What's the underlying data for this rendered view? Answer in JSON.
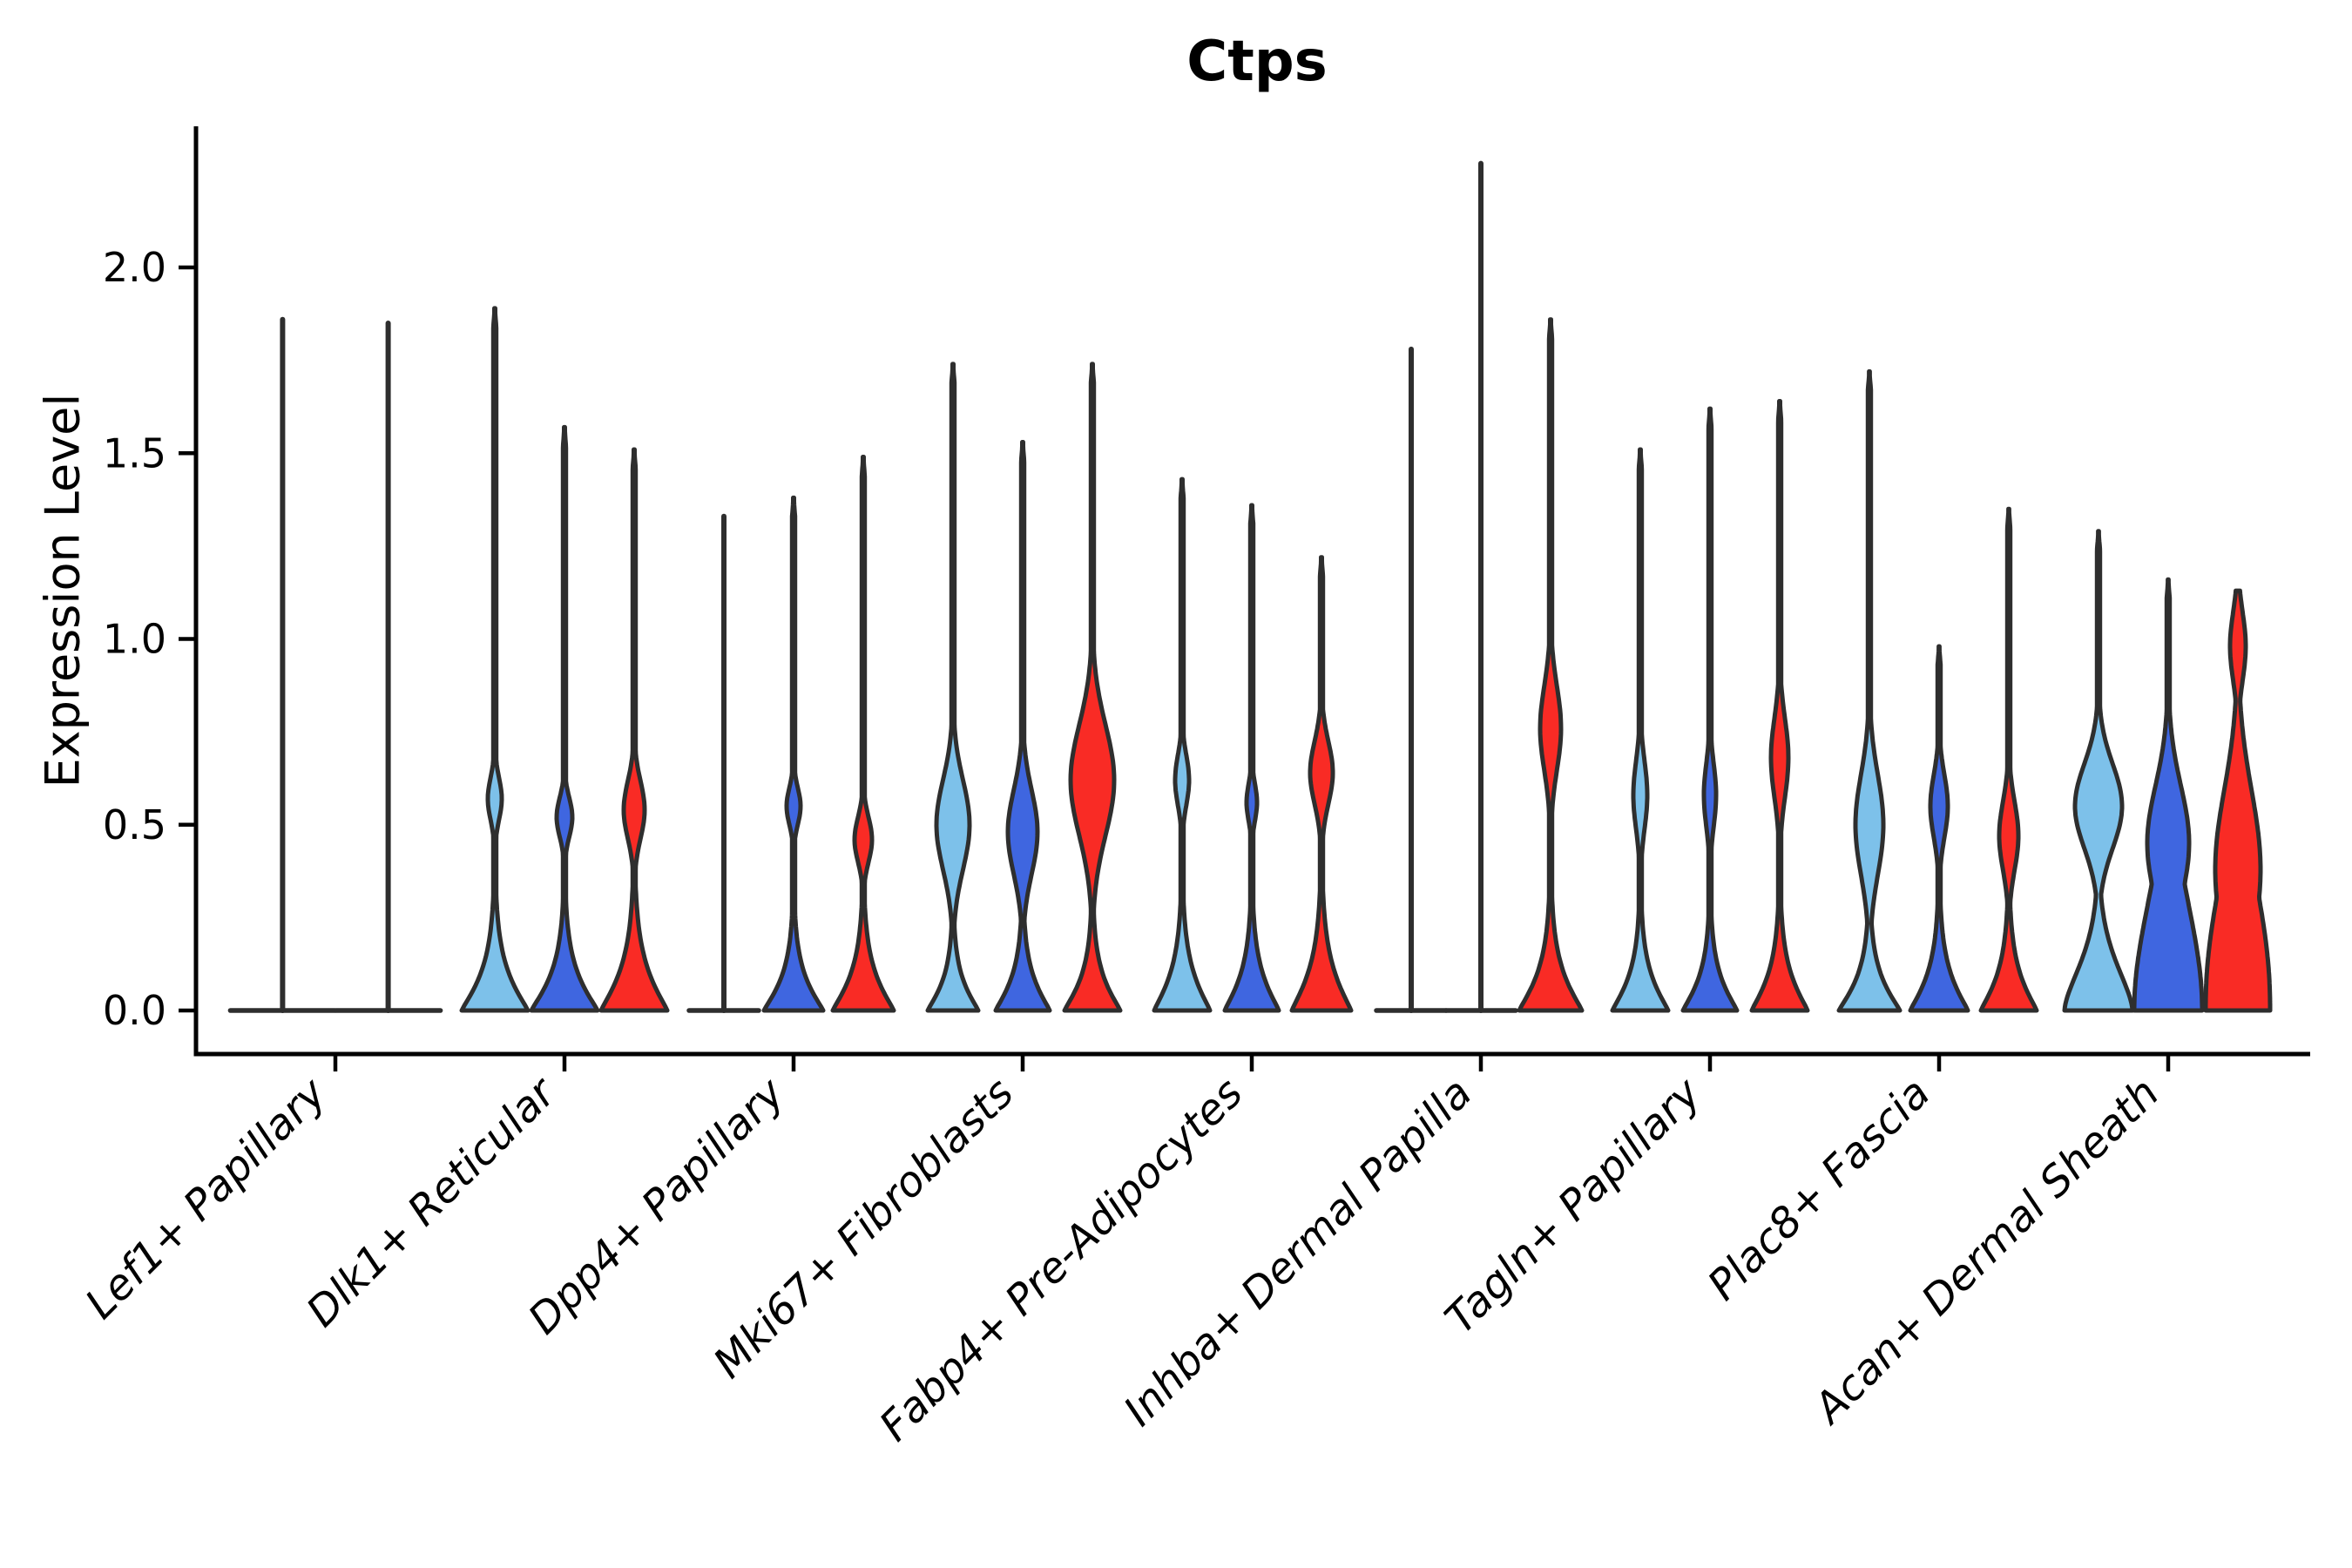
{
  "title": "Ctps",
  "ylabel": "Expression Level",
  "colors": {
    "condition1": "#7DC1EA",
    "condition2": "#3F66E0",
    "condition3": "#F92B25",
    "edge": "#2E2E2E",
    "axis": "#000000"
  },
  "chart_data": {
    "type": "violin",
    "title": "Ctps",
    "xlabel": "",
    "ylabel": "Expression Level",
    "ylim": [
      -0.12,
      2.38
    ],
    "yticks": [
      {
        "value": 0.0,
        "label": "0.0"
      },
      {
        "value": 0.5,
        "label": "0.5"
      },
      {
        "value": 1.0,
        "label": "1.0"
      },
      {
        "value": 1.5,
        "label": "1.5"
      },
      {
        "value": 2.0,
        "label": "2.0"
      }
    ],
    "grid": false,
    "legend_position": "none",
    "conditions": [
      {
        "id": "condition-1",
        "color": "#7DC1EA"
      },
      {
        "id": "condition-2",
        "color": "#3F66E0"
      },
      {
        "id": "condition-3",
        "color": "#F92B25"
      }
    ],
    "categories": [
      "Lef1+ Papillary",
      "Dlk1+ Reticular",
      "Dpp4+ Papillary",
      "Mki67+ Fibroblasts",
      "Fabp4+ Pre-Adipocytes",
      "Inhba+ Dermal Papilla",
      "Tagln+ Papillary",
      "Plac8+ Fascia",
      "Acan+ Dermal Sheath"
    ],
    "groups": [
      {
        "label": "Lef1+ Papillary",
        "violins": [
          {
            "condition": 1,
            "max": 1.86,
            "flat": true
          },
          {
            "condition": 2,
            "max": 1.85,
            "flat": true
          }
        ]
      },
      {
        "label": "Dlk1+ Reticular",
        "violins": [
          {
            "condition": 1,
            "max": 1.89,
            "flat": false,
            "base": {
              "A": 38,
              "s": 0.115,
              "p": 1.15
            },
            "bumps": [
              {
                "c": 0.57,
                "A": 8,
                "s": 0.08
              }
            ]
          },
          {
            "condition": 2,
            "max": 1.57,
            "flat": false,
            "base": {
              "A": 38,
              "s": 0.11,
              "p": 1.15
            },
            "bumps": [
              {
                "c": 0.52,
                "A": 9,
                "s": 0.075
              }
            ]
          },
          {
            "condition": 3,
            "max": 1.51,
            "flat": false,
            "base": {
              "A": 38,
              "s": 0.125,
              "p": 1.15
            },
            "bumps": [
              {
                "c": 0.54,
                "A": 12,
                "s": 0.11
              }
            ]
          }
        ]
      },
      {
        "label": "Dpp4+ Papillary",
        "violins": [
          {
            "condition": 1,
            "max": 1.33,
            "flat": true
          },
          {
            "condition": 2,
            "max": 1.38,
            "flat": false,
            "base": {
              "A": 34,
              "s": 0.1,
              "p": 1.15
            },
            "bumps": [
              {
                "c": 0.55,
                "A": 8,
                "s": 0.07
              }
            ]
          },
          {
            "condition": 3,
            "max": 1.49,
            "flat": false,
            "base": {
              "A": 35,
              "s": 0.11,
              "p": 1.15
            },
            "bumps": [
              {
                "c": 0.46,
                "A": 10,
                "s": 0.085
              }
            ]
          }
        ]
      },
      {
        "label": "Mki67+ Fibroblasts",
        "violins": [
          {
            "condition": 1,
            "max": 1.74,
            "flat": false,
            "base": {
              "A": 29,
              "s": 0.09,
              "p": 1.15
            },
            "bumps": [
              {
                "c": 0.5,
                "A": 19,
                "s": 0.17
              }
            ]
          },
          {
            "condition": 2,
            "max": 1.53,
            "flat": false,
            "base": {
              "A": 31,
              "s": 0.1,
              "p": 1.15
            },
            "bumps": [
              {
                "c": 0.48,
                "A": 17,
                "s": 0.16
              }
            ]
          },
          {
            "condition": 3,
            "max": 1.74,
            "flat": false,
            "base": {
              "A": 32,
              "s": 0.1,
              "p": 1.15
            },
            "bumps": [
              {
                "c": 0.62,
                "A": 25,
                "s": 0.21
              }
            ]
          }
        ]
      },
      {
        "label": "Fabp4+ Pre-Adipocytes",
        "violins": [
          {
            "condition": 1,
            "max": 1.43,
            "flat": false,
            "base": {
              "A": 32,
              "s": 0.115,
              "p": 1.15
            },
            "bumps": [
              {
                "c": 0.62,
                "A": 8,
                "s": 0.095
              }
            ]
          },
          {
            "condition": 2,
            "max": 1.36,
            "flat": false,
            "base": {
              "A": 31,
              "s": 0.11,
              "p": 1.15
            },
            "bumps": [
              {
                "c": 0.56,
                "A": 6,
                "s": 0.07
              }
            ]
          },
          {
            "condition": 3,
            "max": 1.22,
            "flat": false,
            "base": {
              "A": 34,
              "s": 0.125,
              "p": 1.15
            },
            "bumps": [
              {
                "c": 0.64,
                "A": 13,
                "s": 0.12
              }
            ]
          }
        ]
      },
      {
        "label": "Inhba+ Dermal Papilla",
        "violins": [
          {
            "condition": 1,
            "max": 1.78,
            "flat": true
          },
          {
            "condition": 2,
            "max": 2.28,
            "flat": true
          },
          {
            "condition": 3,
            "max": 1.86,
            "flat": false,
            "base": {
              "A": 36,
              "s": 0.115,
              "p": 1.15
            },
            "bumps": [
              {
                "c": 0.76,
                "A": 12,
                "s": 0.16
              }
            ]
          }
        ]
      },
      {
        "label": "Tagln+ Papillary",
        "violins": [
          {
            "condition": 1,
            "max": 1.51,
            "flat": false,
            "base": {
              "A": 32,
              "s": 0.105,
              "p": 1.15
            },
            "bumps": [
              {
                "c": 0.58,
                "A": 8,
                "s": 0.13
              }
            ]
          },
          {
            "condition": 2,
            "max": 1.62,
            "flat": false,
            "base": {
              "A": 31,
              "s": 0.1,
              "p": 1.15
            },
            "bumps": [
              {
                "c": 0.58,
                "A": 7,
                "s": 0.12
              }
            ]
          },
          {
            "condition": 3,
            "max": 1.64,
            "flat": false,
            "base": {
              "A": 32,
              "s": 0.11,
              "p": 1.15
            },
            "bumps": [
              {
                "c": 0.68,
                "A": 10,
                "s": 0.15
              }
            ]
          }
        ]
      },
      {
        "label": "Plac8+ Fascia",
        "violins": [
          {
            "condition": 1,
            "max": 1.72,
            "flat": false,
            "base": {
              "A": 35,
              "s": 0.1,
              "p": 1.15
            },
            "bumps": [
              {
                "c": 0.5,
                "A": 16,
                "s": 0.19
              }
            ]
          },
          {
            "condition": 2,
            "max": 0.98,
            "flat": false,
            "base": {
              "A": 33,
              "s": 0.11,
              "p": 1.15
            },
            "bumps": [
              {
                "c": 0.55,
                "A": 10,
                "s": 0.12
              }
            ]
          },
          {
            "condition": 3,
            "max": 1.35,
            "flat": false,
            "base": {
              "A": 32,
              "s": 0.11,
              "p": 1.15
            },
            "bumps": [
              {
                "c": 0.47,
                "A": 11,
                "s": 0.13
              }
            ]
          }
        ]
      },
      {
        "label": "Acan+ Dermal Sheath",
        "violins": [
          {
            "condition": 1,
            "max": 1.29,
            "flat": false,
            "base": {
              "A": 39,
              "s": 0.17,
              "p": 1.6
            },
            "bumps": [
              {
                "c": 0.55,
                "A": 27,
                "s": 0.16
              }
            ]
          },
          {
            "condition": 2,
            "max": 1.16,
            "flat": false,
            "base": {
              "A": 39,
              "s": 0.4,
              "p": 2.0
            },
            "bumps": [
              {
                "c": 0.45,
                "A": 24,
                "s": 0.22
              }
            ]
          },
          {
            "condition": 3,
            "max": 1.13,
            "flat": false,
            "base": {
              "A": 37,
              "s": 0.45,
              "p": 2.2
            },
            "bumps": [
              {
                "c": 0.38,
                "A": 26,
                "s": 0.3
              },
              {
                "c": 0.98,
                "A": 9,
                "s": 0.13
              }
            ]
          }
        ]
      }
    ]
  }
}
